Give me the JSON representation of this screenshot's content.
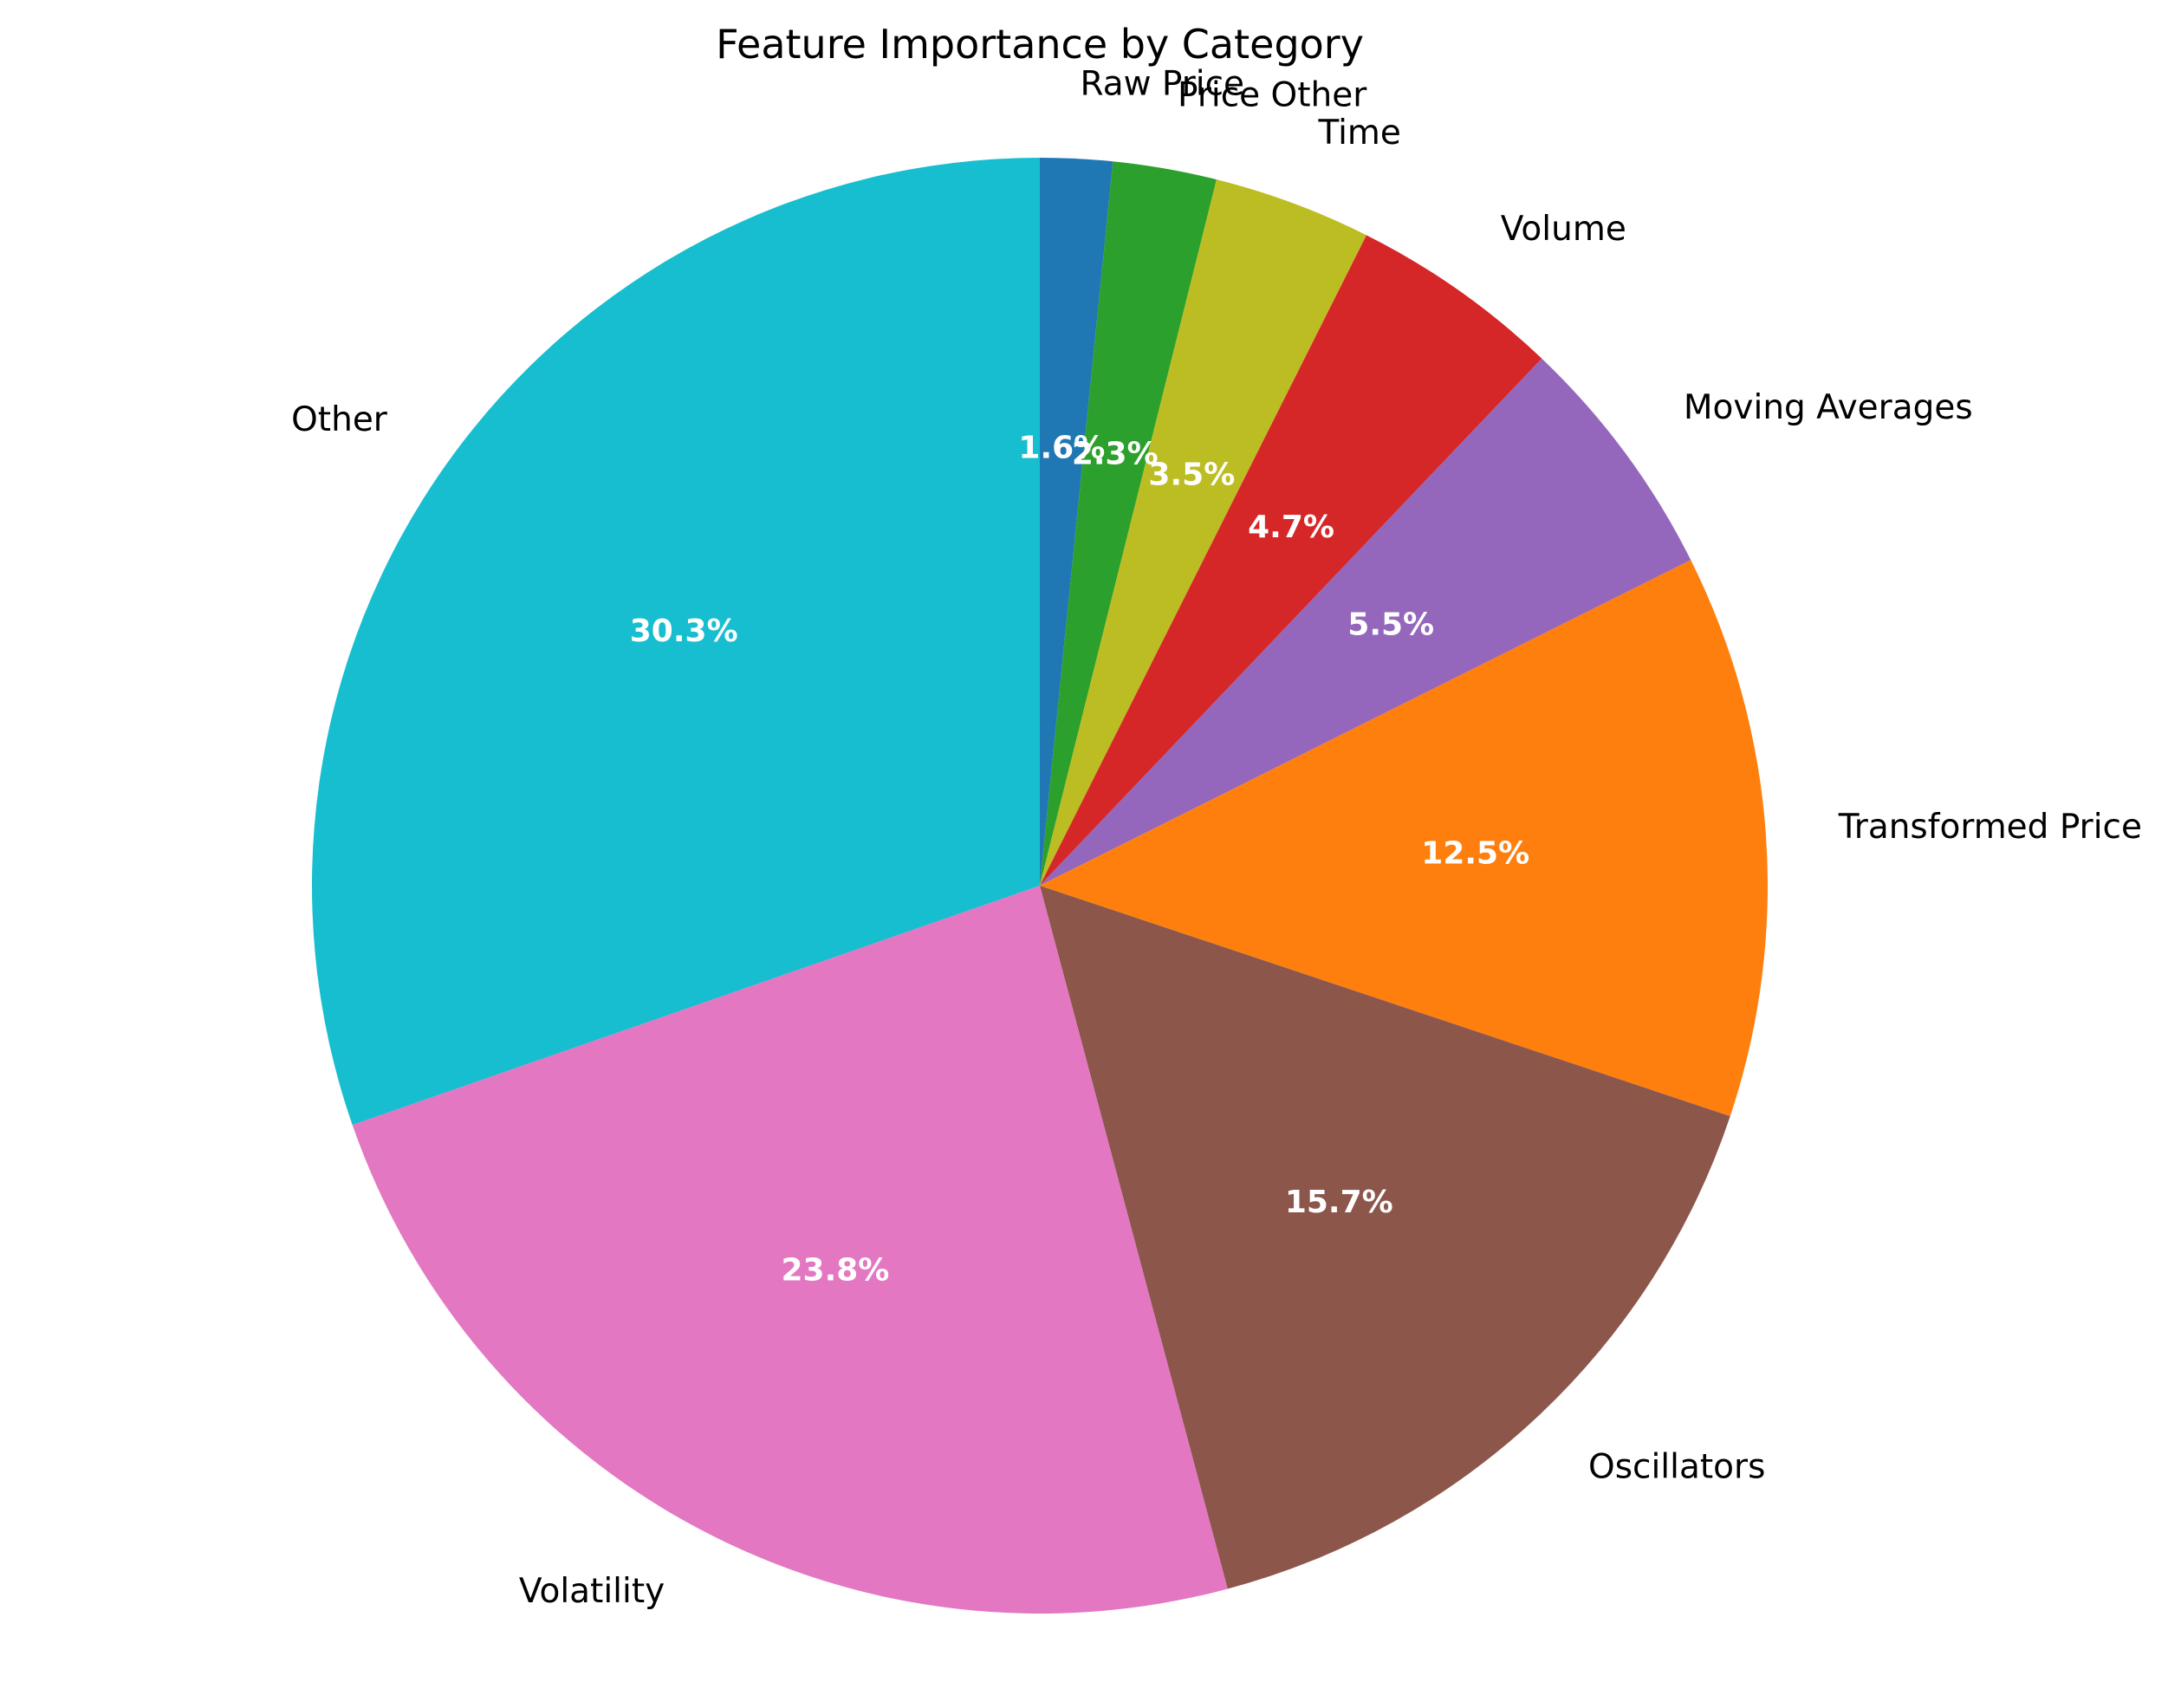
{
  "chart_data": {
    "type": "pie",
    "title": "Feature Importance by Category",
    "start_angle_deg": 90,
    "direction": "clockwise",
    "slices": [
      {
        "label": "Raw Price",
        "value": 1.6,
        "pct_text": "1.6%",
        "color": "#1f77b4"
      },
      {
        "label": "Price Other",
        "value": 2.3,
        "pct_text": "2.3%",
        "color": "#2ca02c"
      },
      {
        "label": "Time",
        "value": 3.5,
        "pct_text": "3.5%",
        "color": "#bcbd22"
      },
      {
        "label": "Volume",
        "value": 4.7,
        "pct_text": "4.7%",
        "color": "#d62728"
      },
      {
        "label": "Moving Averages",
        "value": 5.5,
        "pct_text": "5.5%",
        "color": "#9467bd"
      },
      {
        "label": "Transformed Price",
        "value": 12.5,
        "pct_text": "12.5%",
        "color": "#ff7f0e"
      },
      {
        "label": "Oscillators",
        "value": 15.7,
        "pct_text": "15.7%",
        "color": "#8c564b"
      },
      {
        "label": "Volatility",
        "value": 23.8,
        "pct_text": "23.8%",
        "color": "#e377c2"
      },
      {
        "label": "Other",
        "value": 30.3,
        "pct_text": "30.3%",
        "color": "#17becf"
      }
    ]
  }
}
